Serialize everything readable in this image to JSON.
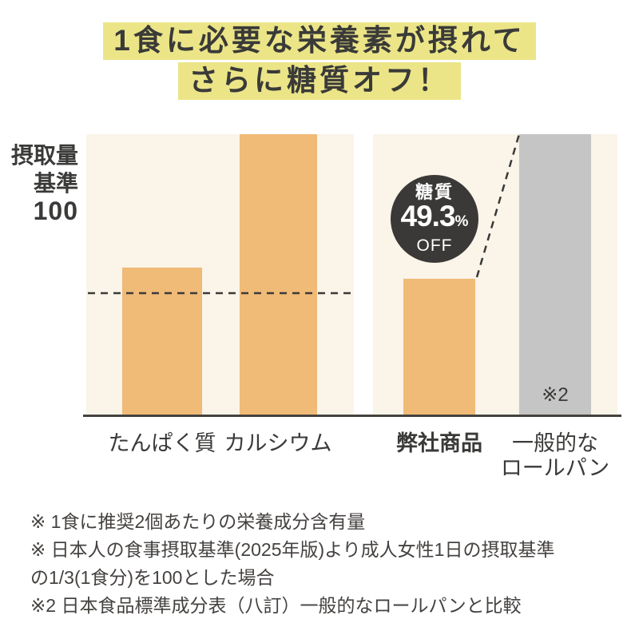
{
  "title": {
    "line1": "1食に必要な栄養素が摂れて",
    "line2": "さらに糖質オフ！",
    "highlight_color": "#ebe588",
    "text_color": "#3a3a38"
  },
  "chart_data": {
    "type": "bar",
    "title": "1食に必要な栄養素が摂れて さらに糖質オフ！",
    "ylabel_lines": [
      "摂取量",
      "基準",
      "100"
    ],
    "reference_line_value": 100,
    "ylim": [
      0,
      229
    ],
    "grid": false,
    "legend": "none",
    "panels": [
      {
        "name": "nutrients",
        "categories": [
          "たんぱく質",
          "カルシウム"
        ],
        "category_lines": [
          [
            "たんぱく質"
          ],
          [
            "カルシウム"
          ]
        ],
        "values": [
          121,
          229
        ],
        "clipped_at_top": [
          false,
          true
        ],
        "colors": [
          "#f0ba77",
          "#f0ba77"
        ]
      },
      {
        "name": "sugar-comparison",
        "categories": [
          "弊社商品",
          "一般的なロールパン"
        ],
        "category_lines": [
          [
            "弊社商品"
          ],
          [
            "一般的な",
            "ロールパン"
          ]
        ],
        "values": [
          112,
          229
        ],
        "clipped_at_top": [
          false,
          true
        ],
        "colors": [
          "#f0ba77",
          "#c5c5c5"
        ]
      }
    ],
    "badge": {
      "line1": "糖質",
      "value": "49.3",
      "percent_sign": "%",
      "line3": "OFF",
      "bg_color": "#3b3937",
      "text_color": "#ffffff"
    },
    "bar_note": "※2",
    "panel_bg_color": "#faf4e9",
    "bar_color_orange": "#f0ba77",
    "bar_color_gray": "#c5c5c5"
  },
  "footnotes": {
    "lines": [
      "※ 1食に推奨2個あたりの栄養成分含有量",
      "※ 日本人の食事摂取基準(2025年版)より成人女性1日の摂取基準",
      "の1/3(1食分)を100とした場合",
      "※2 日本食品標準成分表（八訂）一般的なロールパンと比較"
    ]
  }
}
